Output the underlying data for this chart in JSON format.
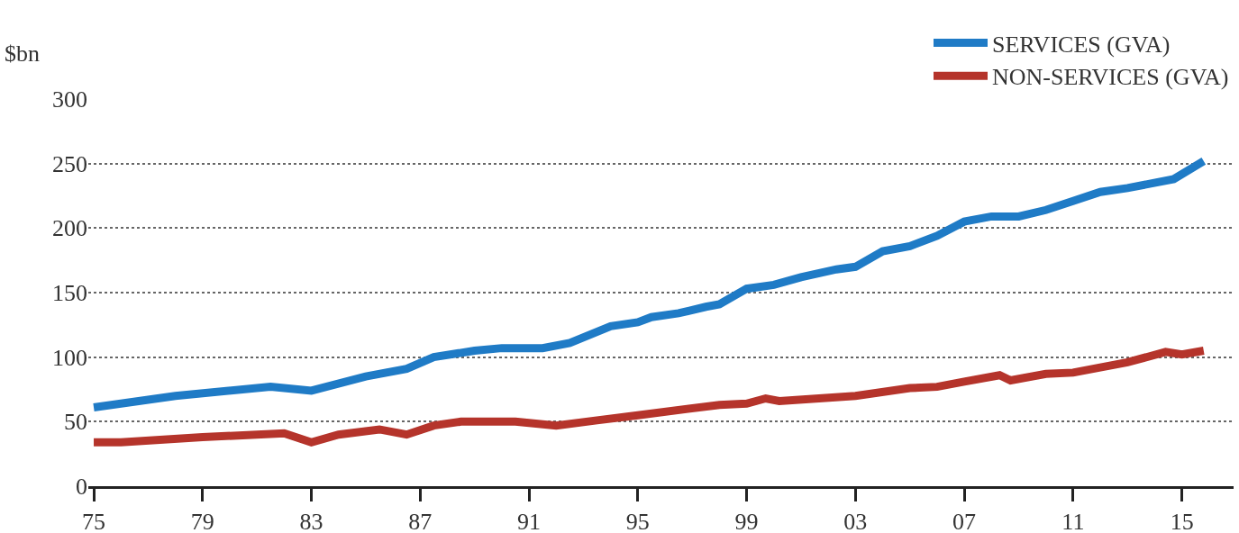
{
  "chart_data": {
    "type": "line",
    "ylabel": "$bn",
    "xlim": [
      1974.8,
      2016.9
    ],
    "ylim": [
      0,
      300
    ],
    "xticks": [
      {
        "value": 1975,
        "label": "75"
      },
      {
        "value": 1979,
        "label": "79"
      },
      {
        "value": 1983,
        "label": "83"
      },
      {
        "value": 1987,
        "label": "87"
      },
      {
        "value": 1991,
        "label": "91"
      },
      {
        "value": 1995,
        "label": "95"
      },
      {
        "value": 1999,
        "label": "99"
      },
      {
        "value": 2003,
        "label": "03"
      },
      {
        "value": 2007,
        "label": "07"
      },
      {
        "value": 2011,
        "label": "11"
      },
      {
        "value": 2015,
        "label": "15"
      }
    ],
    "yticks": [
      0,
      50,
      100,
      150,
      200,
      250,
      300
    ],
    "grid": "y",
    "legend": "top right",
    "marker": "none",
    "line_style": "solid",
    "series": [
      {
        "name": "SERVICES (GVA)",
        "color": "#1f7bc6",
        "x": [
          1975,
          1978,
          1981.5,
          1983,
          1985,
          1986.5,
          1987.5,
          1989,
          1990,
          1991.5,
          1992.5,
          1994,
          1995,
          1995.5,
          1996.5,
          1997.5,
          1998,
          1999,
          2000,
          2001,
          2002.3,
          2003,
          2004,
          2005,
          2006,
          2007,
          2008,
          2009,
          2010,
          2011,
          2012,
          2013,
          2014.7,
          2015.8
        ],
        "values": [
          61,
          70,
          77,
          74,
          85,
          91,
          100,
          105,
          107,
          107,
          111,
          124,
          127,
          131,
          134,
          139,
          141,
          153,
          156,
          162,
          168,
          170,
          182,
          186,
          194,
          205,
          209,
          209,
          214,
          221,
          228,
          231,
          238,
          252
        ]
      },
      {
        "name": "NON-SERVICES (GVA)",
        "color": "#b5342b",
        "x": [
          1975,
          1976,
          1979,
          1982,
          1983,
          1984,
          1985.5,
          1986.5,
          1987.5,
          1988.5,
          1990.5,
          1992,
          1993.5,
          1995,
          1998,
          1999,
          1999.7,
          2000.2,
          2003,
          2005,
          2006,
          2007,
          2008.3,
          2008.7,
          2010,
          2011,
          2013,
          2014.4,
          2015,
          2015.8
        ],
        "values": [
          34,
          34,
          38,
          41,
          34,
          40,
          44,
          40,
          47,
          50,
          50,
          47,
          51,
          55,
          63,
          64,
          68,
          66,
          70,
          76,
          77,
          81,
          86,
          82,
          87,
          88,
          96,
          104,
          102,
          105
        ]
      }
    ]
  }
}
